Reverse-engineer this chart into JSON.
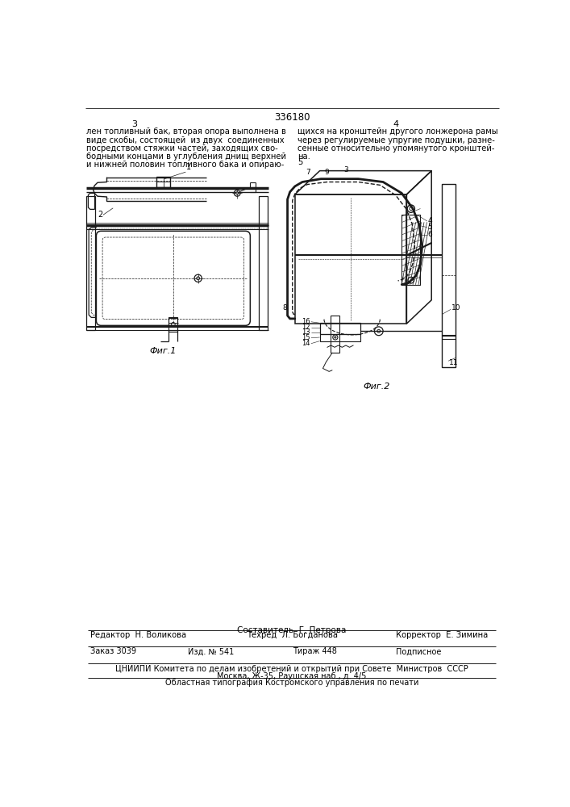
{
  "page_number": "336180",
  "col_left": "3",
  "col_right": "4",
  "text_left_lines": [
    "лен топливный бак, вторая опора выполнена в",
    "виде скобы, состоящей  из двух  соединенных",
    "посредством стяжки частей, заходящих сво-",
    "бодными концами в углубления днищ верхней",
    "и нижней половин топливного бака и опираю-"
  ],
  "text_right_lines": [
    "щихся на кронштейн другого лонжерона рамы",
    "через регулируемые упругие подушки, разне-",
    "сенные относительно упомянутого кронштей-",
    "на."
  ],
  "text_right_num": "5",
  "fig1_caption": "Фиг.1",
  "fig2_caption": "Фиг.2",
  "footer_compiler": "Составитель  Г. Петрова",
  "footer_editor": "Редактор  Н. Воликова",
  "footer_tech": "Техред  Л. Богданова",
  "footer_corrector": "Корректор  Е. Зимина",
  "footer_order": "Заказ 3039",
  "footer_edition": "Изд. № 541",
  "footer_print": "Тираж 448",
  "footer_signed": "Подписное",
  "footer_org": "ЦНИИПИ Комитета по делам изобретений и открытий при Совете  Министров  СССР",
  "footer_address": "Москва, Ж-35, Раушская наб., д. 4/5",
  "footer_print_house": "Областная типография Костромского управления по печати",
  "bg_color": "#ffffff",
  "text_color": "#000000",
  "line_color": "#1a1a1a"
}
